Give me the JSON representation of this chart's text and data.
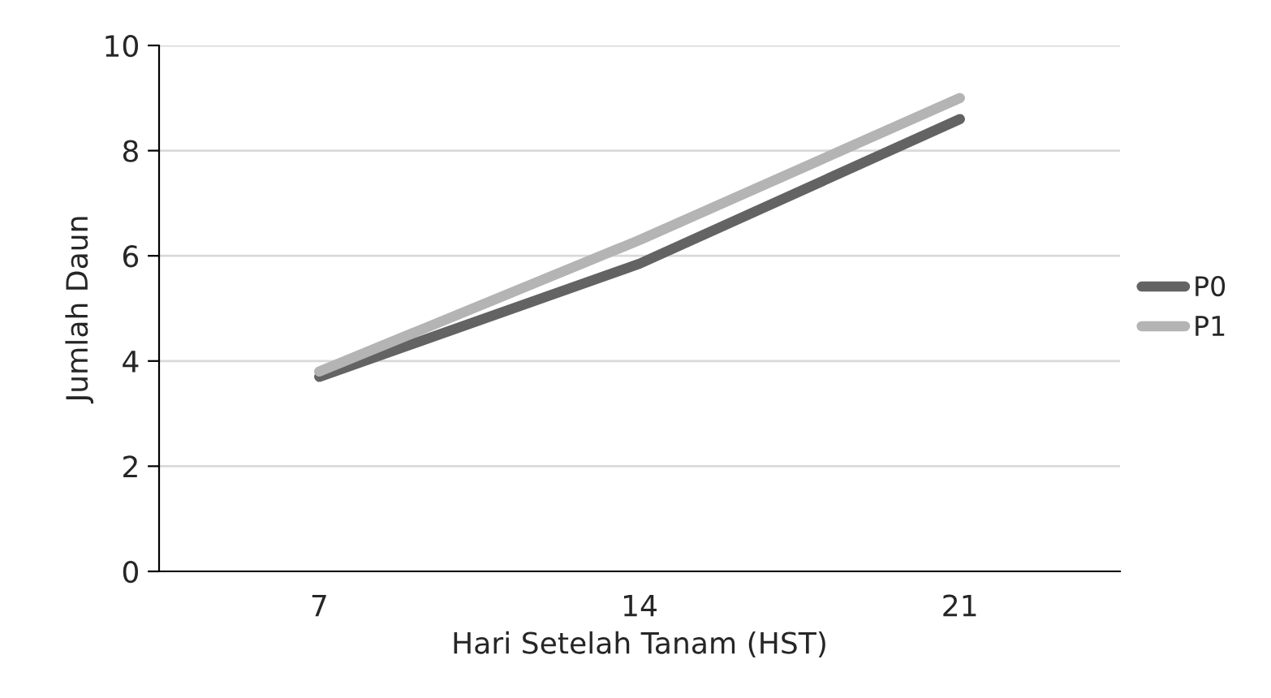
{
  "chart_data": {
    "type": "line",
    "xlabel": "Hari Setelah Tanam (HST)",
    "ylabel": "Jumlah Daun",
    "categories": [
      "7",
      "14",
      "21"
    ],
    "series": [
      {
        "name": "P0",
        "color": "#636363",
        "values": [
          3.7,
          5.85,
          8.6
        ]
      },
      {
        "name": "P1",
        "color": "#b4b4b4",
        "values": [
          3.8,
          6.3,
          9.0
        ]
      }
    ],
    "ylim": [
      0,
      10
    ],
    "yticks": [
      0,
      2,
      4,
      6,
      8,
      10
    ],
    "grid": "y",
    "legend": "right",
    "marker": "none",
    "line_style": "solid"
  }
}
